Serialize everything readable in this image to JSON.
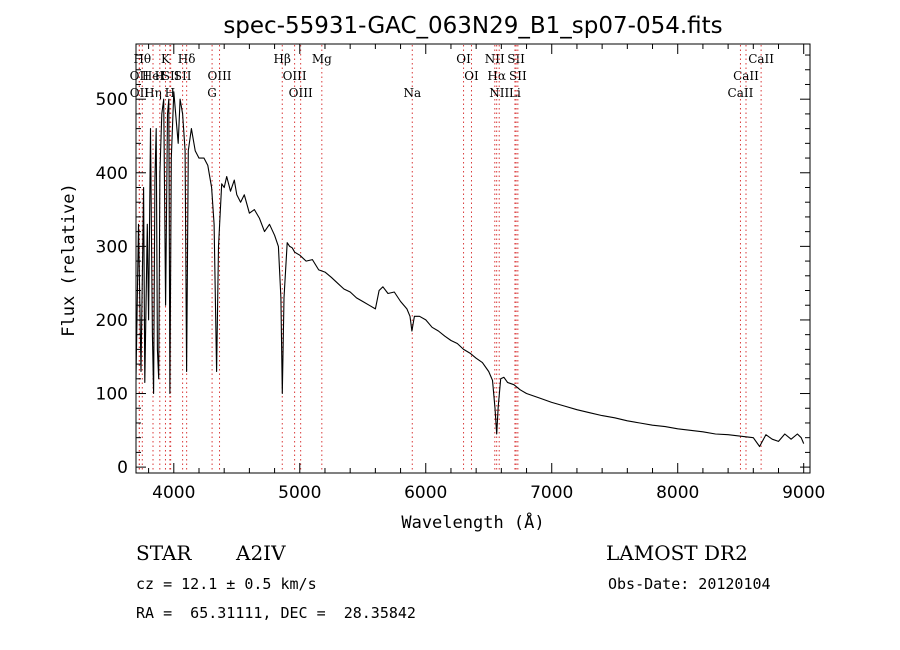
{
  "chart_data": {
    "type": "line",
    "title": "spec-55931-GAC_063N29_B1_sp07-054.fits",
    "xlabel": "Wavelength (Å)",
    "ylabel": "Flux (relative)",
    "xlim": [
      3700,
      9050
    ],
    "ylim": [
      -8,
      575
    ],
    "x_ticks": [
      4000,
      5000,
      6000,
      7000,
      8000,
      9000
    ],
    "y_ticks": [
      0,
      100,
      200,
      300,
      400,
      500
    ],
    "grid": false,
    "series": [
      {
        "points": [
          [
            3700,
            120
          ],
          [
            3720,
            330
          ],
          [
            3740,
            130
          ],
          [
            3760,
            380
          ],
          [
            3770,
            115
          ],
          [
            3790,
            330
          ],
          [
            3800,
            200
          ],
          [
            3815,
            460
          ],
          [
            3830,
            180
          ],
          [
            3840,
            100
          ],
          [
            3850,
            390
          ],
          [
            3860,
            460
          ],
          [
            3870,
            160
          ],
          [
            3880,
            120
          ],
          [
            3890,
            400
          ],
          [
            3905,
            480
          ],
          [
            3920,
            500
          ],
          [
            3935,
            220
          ],
          [
            3950,
            480
          ],
          [
            3960,
            500
          ],
          [
            3969,
            100
          ],
          [
            3980,
            420
          ],
          [
            4000,
            510
          ],
          [
            4020,
            470
          ],
          [
            4035,
            440
          ],
          [
            4050,
            500
          ],
          [
            4070,
            480
          ],
          [
            4090,
            430
          ],
          [
            4102,
            130
          ],
          [
            4115,
            430
          ],
          [
            4140,
            460
          ],
          [
            4170,
            430
          ],
          [
            4200,
            420
          ],
          [
            4240,
            420
          ],
          [
            4270,
            410
          ],
          [
            4300,
            380
          ],
          [
            4320,
            330
          ],
          [
            4340,
            130
          ],
          [
            4355,
            300
          ],
          [
            4380,
            385
          ],
          [
            4400,
            380
          ],
          [
            4420,
            395
          ],
          [
            4450,
            375
          ],
          [
            4480,
            390
          ],
          [
            4500,
            370
          ],
          [
            4530,
            360
          ],
          [
            4560,
            370
          ],
          [
            4600,
            345
          ],
          [
            4640,
            350
          ],
          [
            4680,
            338
          ],
          [
            4720,
            320
          ],
          [
            4760,
            330
          ],
          [
            4800,
            315
          ],
          [
            4830,
            300
          ],
          [
            4850,
            230
          ],
          [
            4861,
            100
          ],
          [
            4875,
            230
          ],
          [
            4900,
            305
          ],
          [
            4920,
            300
          ],
          [
            4940,
            298
          ],
          [
            4960,
            292
          ],
          [
            5000,
            288
          ],
          [
            5050,
            280
          ],
          [
            5100,
            282
          ],
          [
            5150,
            268
          ],
          [
            5200,
            265
          ],
          [
            5250,
            258
          ],
          [
            5300,
            250
          ],
          [
            5350,
            242
          ],
          [
            5400,
            238
          ],
          [
            5450,
            230
          ],
          [
            5500,
            225
          ],
          [
            5550,
            220
          ],
          [
            5600,
            215
          ],
          [
            5630,
            240
          ],
          [
            5660,
            245
          ],
          [
            5700,
            236
          ],
          [
            5750,
            238
          ],
          [
            5800,
            225
          ],
          [
            5850,
            215
          ],
          [
            5875,
            205
          ],
          [
            5890,
            185
          ],
          [
            5910,
            205
          ],
          [
            5950,
            205
          ],
          [
            6000,
            200
          ],
          [
            6050,
            190
          ],
          [
            6100,
            185
          ],
          [
            6150,
            178
          ],
          [
            6200,
            172
          ],
          [
            6250,
            168
          ],
          [
            6300,
            160
          ],
          [
            6350,
            155
          ],
          [
            6400,
            148
          ],
          [
            6450,
            142
          ],
          [
            6500,
            130
          ],
          [
            6530,
            118
          ],
          [
            6550,
            80
          ],
          [
            6563,
            45
          ],
          [
            6575,
            82
          ],
          [
            6595,
            120
          ],
          [
            6620,
            122
          ],
          [
            6650,
            115
          ],
          [
            6700,
            112
          ],
          [
            6750,
            105
          ],
          [
            6800,
            100
          ],
          [
            6900,
            94
          ],
          [
            7000,
            88
          ],
          [
            7100,
            83
          ],
          [
            7200,
            78
          ],
          [
            7300,
            74
          ],
          [
            7400,
            70
          ],
          [
            7500,
            67
          ],
          [
            7600,
            63
          ],
          [
            7700,
            60
          ],
          [
            7800,
            57
          ],
          [
            7900,
            55
          ],
          [
            8000,
            52
          ],
          [
            8100,
            50
          ],
          [
            8200,
            48
          ],
          [
            8300,
            45
          ],
          [
            8400,
            44
          ],
          [
            8500,
            42
          ],
          [
            8600,
            40
          ],
          [
            8650,
            28
          ],
          [
            8700,
            44
          ],
          [
            8750,
            38
          ],
          [
            8800,
            35
          ],
          [
            8850,
            45
          ],
          [
            8900,
            38
          ],
          [
            8950,
            45
          ],
          [
            8980,
            40
          ],
          [
            9000,
            32
          ]
        ]
      }
    ],
    "line_markers": [
      {
        "x": 3750,
        "row": 0,
        "label": "Hθ"
      },
      {
        "x": 3726,
        "row": 1,
        "label": "OII"
      },
      {
        "x": 3727,
        "row": 2,
        "label": "OII"
      },
      {
        "x": 3835,
        "row": 1,
        "label": "HeI"
      },
      {
        "x": 3835,
        "row": 2,
        "label": "Hη"
      },
      {
        "x": 3889,
        "row": 1,
        "label": "H"
      },
      {
        "x": 3934,
        "row": 0,
        "label": "K"
      },
      {
        "x": 3969,
        "row": 2,
        "label": "H"
      },
      {
        "x": 3975,
        "row": 1,
        "label": "SII"
      },
      {
        "x": 4102,
        "row": 0,
        "label": "Hδ"
      },
      {
        "x": 4070,
        "row": 1,
        "label": "SII"
      },
      {
        "x": 4363,
        "row": 1,
        "label": "OIII"
      },
      {
        "x": 4304,
        "row": 2,
        "label": "G"
      },
      {
        "x": 4861,
        "row": 0,
        "label": "Hβ"
      },
      {
        "x": 4959,
        "row": 1,
        "label": "OIII"
      },
      {
        "x": 5007,
        "row": 2,
        "label": "OIII"
      },
      {
        "x": 5175,
        "row": 0,
        "label": "Mg"
      },
      {
        "x": 5893,
        "row": 2,
        "label": "Na"
      },
      {
        "x": 6300,
        "row": 0,
        "label": "OI"
      },
      {
        "x": 6363,
        "row": 1,
        "label": "OI"
      },
      {
        "x": 6548,
        "row": 0,
        "label": "NII"
      },
      {
        "x": 6563,
        "row": 1,
        "label": "Hα"
      },
      {
        "x": 6583,
        "row": 2,
        "label": "NII"
      },
      {
        "x": 6717,
        "row": 0,
        "label": "SII"
      },
      {
        "x": 6731,
        "row": 1,
        "label": "SII"
      },
      {
        "x": 6708,
        "row": 2,
        "label": "Li"
      },
      {
        "x": 8662,
        "row": 0,
        "label": "CaII"
      },
      {
        "x": 8542,
        "row": 1,
        "label": "CaII"
      },
      {
        "x": 8498,
        "row": 2,
        "label": "CaII"
      }
    ]
  },
  "info": {
    "object_class": "STAR",
    "subclass": "A2IV",
    "release": "LAMOST DR2",
    "cz": "cz = 12.1 ± 0.5 km/s",
    "obs_date": "Obs-Date: 20120104",
    "coords": "RA =  65.31111, DEC =  28.35842"
  }
}
